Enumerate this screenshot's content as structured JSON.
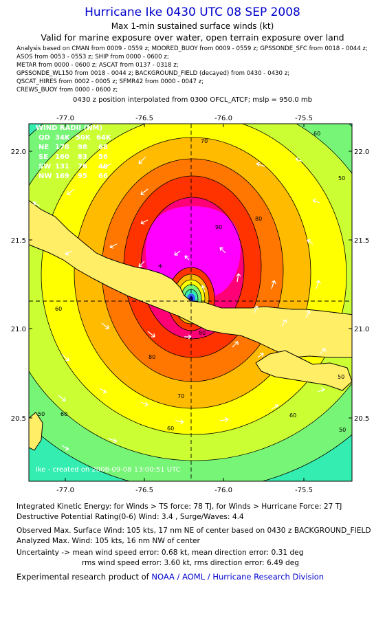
{
  "header": {
    "title": "Hurricane Ike 0430 UTC 08 SEP 2008",
    "subtitle1": "Max 1-min sustained surface winds (kt)",
    "subtitle2": "Valid for marine exposure over water, open terrain exposure over land",
    "sources": [
      "Analysis based on  CMAN from 0009 - 0559 z;  MOORED_BUOY from 0009 - 0559 z;  GPSSONDE_SFC from 0018 - 0044 z;",
      "ASOS from 0053 - 0553 z;  SHIP from 0000 - 0600 z;",
      "METAR from 0000 - 0600 z;  ASCAT from 0137 - 0318 z;",
      "GPSSONDE_WL150 from 0018 - 0044 z;  BACKGROUND_FIELD (decayed) from 0430 - 0430 z;",
      "QSCAT_HIRES from 0002 - 0005 z;  SFMR42 from 0000 - 0047 z;",
      "CREWS_BUOY from 0000 - 0600 z;"
    ],
    "position_note": "0430 z position interpolated from 0300 OFCL_ATCF; mslp = 950.0 mb"
  },
  "map": {
    "lon_ticks": [
      "-77.0",
      "-76.5",
      "-76.0",
      "-75.5"
    ],
    "lat_ticks": [
      "22.0",
      "21.5",
      "21.0",
      "20.5"
    ],
    "lon_range": [
      -77.25,
      -75.25
    ],
    "lat_range": [
      20.2,
      22.15
    ],
    "center": {
      "lon": -76.2,
      "lat": 21.15
    },
    "contour_labels": [
      "70",
      "60",
      "50",
      "90",
      "80",
      "60",
      "80",
      "80",
      "70",
      "60",
      "50",
      "50",
      "60",
      "60",
      "50"
    ],
    "wind_radii": {
      "title": "WIND RADII (NM)",
      "header": [
        "QD",
        "34K",
        "50K",
        "64K"
      ],
      "rows": [
        [
          "NE",
          "178",
          "98",
          "68"
        ],
        [
          "SE",
          "160",
          "83",
          "56"
        ],
        [
          "SW",
          "131",
          "76",
          "40"
        ],
        [
          "NW",
          "169",
          "95",
          "66"
        ]
      ]
    },
    "watermark": "Ike  -  created on 2008-09-08 13:00:51 UTC",
    "colors": {
      "c0": "#33eeb0",
      "c1": "#77f577",
      "c2": "#ccff33",
      "c3": "#ffff00",
      "c4": "#ffbb00",
      "c5": "#ff7700",
      "c6": "#ff3300",
      "c7": "#ff0077",
      "c8": "#ff00ff",
      "c9": "#ffccff"
    }
  },
  "footer": {
    "ike_line": "Integrated Kinetic Energy:  for Winds > TS force: 78 TJ,  for Winds > Hurricane Force: 27 TJ",
    "dpr_line": "Destructive Potential Rating(0-6)   Wind: 3.4 , Surge/Waves: 4.4",
    "observed_line": "Observed Max. Surface Wind: 105 kts, 17 nm NE of center based on 0430 z BACKGROUND_FIELD",
    "analyzed_line": "Analyzed Max. Wind: 105 kts, 16 nm NW of center",
    "uncert_line1": "Uncertainty -> mean wind speed error: 0.68 kt,   mean direction error: 0.31 deg",
    "uncert_line2": "rms wind speed error: 3.60 kt,   rms direction error: 6.49 deg",
    "credit_prefix": "Experimental research product of ",
    "credit_link": "NOAA / AOML / Hurricane Research Division"
  }
}
